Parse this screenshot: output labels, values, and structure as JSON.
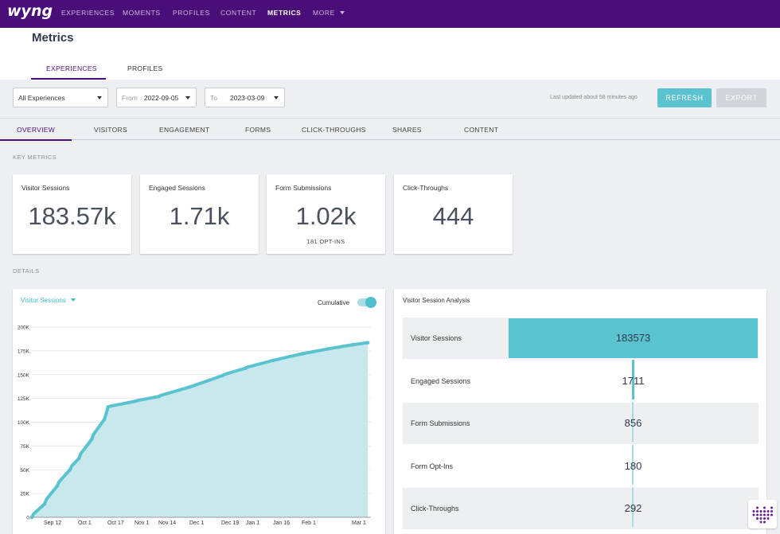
{
  "nav": {
    "logo": "wyng",
    "items": [
      {
        "label": "EXPERIENCES"
      },
      {
        "label": "MOMENTS"
      },
      {
        "label": "PROFILES"
      },
      {
        "label": "CONTENT"
      },
      {
        "label": "METRICS",
        "active": true
      },
      {
        "label": "MORE"
      }
    ]
  },
  "header": {
    "title": "Metrics",
    "tabs": [
      {
        "label": "EXPERIENCES",
        "active": true
      },
      {
        "label": "PROFILES"
      }
    ]
  },
  "filters": {
    "experience_select": "All Experiences",
    "from_label": "From",
    "from_value": "2022-09-05",
    "to_label": "To",
    "to_value": "2023-03-09",
    "last_updated": "Last updated about 58 minutes ago",
    "refresh_label": "REFRESH",
    "export_label": "EXPORT"
  },
  "subtabs": [
    {
      "label": "OVERVIEW",
      "active": true
    },
    {
      "label": "VISITORS"
    },
    {
      "label": "ENGAGEMENT"
    },
    {
      "label": "FORMS"
    },
    {
      "label": "CLICK-THROUGHS"
    },
    {
      "label": "SHARES"
    },
    {
      "label": "CONTENT"
    }
  ],
  "key_metrics": {
    "label": "KEY METRICS",
    "cards": [
      {
        "title": "Visitor Sessions",
        "value": "183.57k",
        "sub": ""
      },
      {
        "title": "Engaged Sessions",
        "value": "1.71k",
        "sub": ""
      },
      {
        "title": "Form Submissions",
        "value": "1.02k",
        "sub": "181 OPT-INS"
      },
      {
        "title": "Click-Throughs",
        "value": "444",
        "sub": ""
      }
    ]
  },
  "details": {
    "label": "DETAILS",
    "chart_select": "Visitor Sessions",
    "cumulative_label": "Cumulative",
    "cumulative_on": true
  },
  "chart_data": {
    "type": "area",
    "title": "",
    "xlabel": "",
    "ylabel": "",
    "ylim": [
      0,
      200000
    ],
    "y_ticks": [
      "0",
      "25K",
      "50K",
      "75K",
      "100K",
      "125K",
      "150K",
      "175K",
      "200K"
    ],
    "x_ticks": [
      "Sep 12",
      "Oct 1",
      "Oct 17",
      "Nov 1",
      "Nov 14",
      "Dec 1",
      "Dec 19",
      "Jan 1",
      "Jan 16",
      "Feb 1",
      "Mar 1"
    ],
    "color": "#5bc3cf",
    "fill": "#c7e9ee",
    "series": [
      {
        "x": [
          "2022-09-05",
          "2022-09-12",
          "2022-09-19",
          "2022-09-26",
          "2022-10-01",
          "2022-10-08",
          "2022-10-15",
          "2022-10-17",
          "2022-11-01",
          "2022-11-14",
          "2022-12-01",
          "2022-12-19",
          "2023-01-01",
          "2023-01-16",
          "2023-02-01",
          "2023-02-15",
          "2023-03-01",
          "2023-03-09"
        ],
        "values": [
          0,
          14000,
          33000,
          50000,
          62000,
          82000,
          103000,
          116000,
          122000,
          127000,
          137000,
          149000,
          157000,
          165000,
          172000,
          177000,
          181500,
          183573
        ]
      }
    ]
  },
  "analysis": {
    "title": "Visitor Session Analysis",
    "rows": [
      {
        "label": "Visitor Sessions",
        "value": "183573",
        "fraction": 1.0
      },
      {
        "label": "Engaged Sessions",
        "value": "1711",
        "fraction": 0.0093
      },
      {
        "label": "Form Submissions",
        "value": "856",
        "fraction": 0.0047
      },
      {
        "label": "Form Opt-Ins",
        "value": "180",
        "fraction": 0.001
      },
      {
        "label": "Click-Throughs",
        "value": "292",
        "fraction": 0.0016
      }
    ]
  }
}
